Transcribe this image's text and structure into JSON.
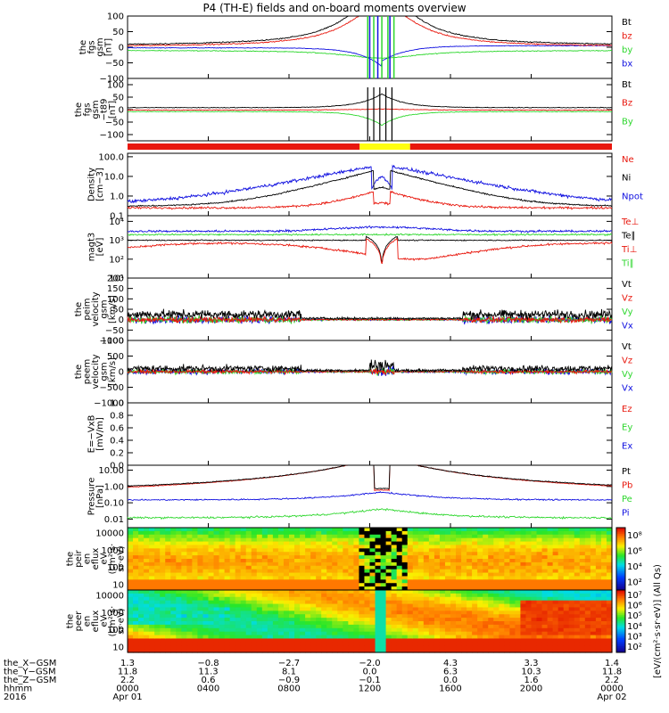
{
  "title": "P4 (TH-E) fields and on-board moments overview",
  "colors": {
    "black": "#000000",
    "red": "#e8170d",
    "green": "#2ed72e",
    "blue": "#1010e0",
    "yellow": "#ffff10"
  },
  "panels": [
    {
      "id": "fgs-gsm",
      "ylabel": [
        "the",
        "fgs",
        "gsm",
        "[nT]"
      ],
      "scale": "linear",
      "ylim": [
        -100,
        100
      ],
      "ticks": [
        "100",
        "50",
        "0",
        "−50",
        "−100"
      ],
      "tickvals": [
        100,
        50,
        0,
        -50,
        -100
      ],
      "legend": [
        {
          "text": "Bt",
          "color": "black"
        },
        {
          "text": "bz",
          "color": "red"
        },
        {
          "text": "by",
          "color": "green"
        },
        {
          "text": "bx",
          "color": "blue"
        }
      ]
    },
    {
      "id": "fgs-gsm-t89",
      "ylabel": [
        "the",
        "fgs",
        "gsm",
        "−t89",
        "[nT]"
      ],
      "scale": "linear",
      "ylim": [
        -125,
        125
      ],
      "ticks": [
        "100",
        "50",
        "0",
        "−50",
        "−100"
      ],
      "tickvals": [
        100,
        50,
        0,
        -50,
        -100
      ],
      "legend": [
        {
          "text": "Bt",
          "color": "black"
        },
        {
          "text": "Bz",
          "color": "red"
        },
        {
          "text": "By",
          "color": "green"
        }
      ]
    },
    {
      "id": "density",
      "ylabel": [
        "Density",
        "[cm−3]"
      ],
      "scale": "log",
      "ylim": [
        0.1,
        150
      ],
      "ticks": [
        "100.0",
        "10.0",
        "1.0",
        "0.1"
      ],
      "tickvals": [
        100,
        10,
        1,
        0.1
      ],
      "legend": [
        {
          "text": "Ne",
          "color": "red"
        },
        {
          "text": "Ni",
          "color": "black"
        },
        {
          "text": "Npot",
          "color": "blue"
        }
      ]
    },
    {
      "id": "temperature",
      "ylabel": [
        "magt3",
        "[eV]"
      ],
      "scale": "log",
      "ylim": [
        10,
        20000
      ],
      "ticks": [
        "10⁴",
        "10³",
        "10²",
        "10¹"
      ],
      "tickvals": [
        10000,
        1000,
        100,
        10
      ],
      "legend": [
        {
          "text": "Te⊥",
          "color": "red"
        },
        {
          "text": "Te∥",
          "color": "black"
        },
        {
          "text": "Ti⊥",
          "color": "red"
        },
        {
          "text": "Ti∥",
          "color": "green"
        }
      ]
    },
    {
      "id": "peim-velocity",
      "ylabel": [
        "the",
        "peim",
        "velocity",
        "gsm",
        "[km/s]"
      ],
      "scale": "linear",
      "ylim": [
        -100,
        200
      ],
      "ticks": [
        "200",
        "150",
        "100",
        "50",
        "0",
        "−50",
        "−100"
      ],
      "tickvals": [
        200,
        150,
        100,
        50,
        0,
        -50,
        -100
      ],
      "legend": [
        {
          "text": "Vt",
          "color": "black"
        },
        {
          "text": "Vz",
          "color": "red"
        },
        {
          "text": "Vy",
          "color": "green"
        },
        {
          "text": "Vx",
          "color": "blue"
        }
      ]
    },
    {
      "id": "peem-velocity",
      "ylabel": [
        "the",
        "peem",
        "velocity",
        "gsm",
        "[km/s]"
      ],
      "scale": "linear",
      "ylim": [
        -1000,
        1000
      ],
      "ticks": [
        "1000",
        "500",
        "0",
        "−500",
        "−1000"
      ],
      "tickvals": [
        1000,
        500,
        0,
        -500,
        -1000
      ],
      "legend": [
        {
          "text": "Vt",
          "color": "black"
        },
        {
          "text": "Vz",
          "color": "red"
        },
        {
          "text": "Vy",
          "color": "green"
        },
        {
          "text": "Vx",
          "color": "blue"
        }
      ]
    },
    {
      "id": "efield",
      "ylabel": [
        "E=−VxB",
        "[mV/m]"
      ],
      "scale": "linear",
      "ylim": [
        0,
        1
      ],
      "ticks": [
        "1.0",
        "0.8",
        "0.6",
        "0.4",
        "0.2",
        "0.0"
      ],
      "tickvals": [
        1,
        0.8,
        0.6,
        0.4,
        0.2,
        0
      ],
      "legend": [
        {
          "text": "Ez",
          "color": "red"
        },
        {
          "text": "Ey",
          "color": "green"
        },
        {
          "text": "Ex",
          "color": "blue"
        }
      ]
    },
    {
      "id": "pressure",
      "ylabel": [
        "Pressure",
        "[nPa]"
      ],
      "scale": "log",
      "ylim": [
        0.003,
        20
      ],
      "ticks": [
        "10.00",
        "1.00",
        "0.10",
        "0.01"
      ],
      "tickvals": [
        10,
        1,
        0.1,
        0.01
      ],
      "legend": [
        {
          "text": "Pt",
          "color": "black"
        },
        {
          "text": "Pb",
          "color": "red"
        },
        {
          "text": "Pe",
          "color": "green"
        },
        {
          "text": "Pi",
          "color": "blue"
        }
      ]
    },
    {
      "id": "peir-eflux",
      "ylabel": [
        "the",
        "peir",
        "en",
        "eflux",
        "eV",
        "(cm²·s·",
        "sr·eV)"
      ],
      "scale": "log",
      "ylim": [
        5,
        20000
      ],
      "ticks": [
        "10000",
        "1000",
        "100",
        "10"
      ],
      "tickvals": [
        10000,
        1000,
        100,
        10
      ],
      "legend": []
    },
    {
      "id": "peer-eflux",
      "ylabel": [
        "the",
        "peer",
        "en",
        "eflux",
        "eV",
        "(cm²·s·",
        "sr·eV)"
      ],
      "scale": "log",
      "ylim": [
        5,
        20000
      ],
      "ticks": [
        "10000",
        "1000",
        "100",
        "10"
      ],
      "tickvals": [
        10000,
        1000,
        100,
        10
      ],
      "legend": []
    }
  ],
  "colorbars": [
    {
      "ticks": [
        "10⁸",
        "10⁶",
        "10⁴",
        "10²"
      ],
      "tickvals": [
        8,
        6,
        4,
        2
      ],
      "range": [
        1,
        9
      ]
    },
    {
      "ticks": [
        "10⁷",
        "10⁶",
        "10⁵",
        "10⁴",
        "10³",
        "10²"
      ],
      "tickvals": [
        7,
        6,
        5,
        4,
        3,
        2
      ],
      "range": [
        1.5,
        7.5
      ]
    }
  ],
  "colorbar_label": "[eV/(cm²·s·sr·eV)] (All Qs)",
  "xaxis": {
    "rows": [
      {
        "label": "the_X−GSM",
        "values": [
          "1.3",
          "−0.8",
          "−2.7",
          "−2.0",
          "4.3",
          "3.3",
          "1.4"
        ]
      },
      {
        "label": "the_Y−GSM",
        "values": [
          "11.8",
          "11.3",
          "8.1",
          "0.0",
          "6.3",
          "10.3",
          "11.8"
        ]
      },
      {
        "label": "the_Z−GSM",
        "values": [
          "2.2",
          "0.6",
          "−0.9",
          "−0.1",
          "0.0",
          "1.6",
          "2.2"
        ]
      },
      {
        "label": "hhmm",
        "values": [
          "0000",
          "0400",
          "0800",
          "1200",
          "1600",
          "2000",
          "0000"
        ]
      },
      {
        "label": "2016",
        "values": [
          "Apr 01",
          "",
          "",
          "",
          "",
          "",
          "Apr 02"
        ]
      }
    ],
    "hours": [
      0,
      4,
      8,
      12,
      16,
      20,
      24
    ]
  },
  "mode_bar": [
    {
      "start": 0,
      "end": 11.5,
      "color": "red"
    },
    {
      "start": 11.5,
      "end": 14.0,
      "color": "yellow"
    },
    {
      "start": 14.0,
      "end": 24,
      "color": "red"
    }
  ]
}
